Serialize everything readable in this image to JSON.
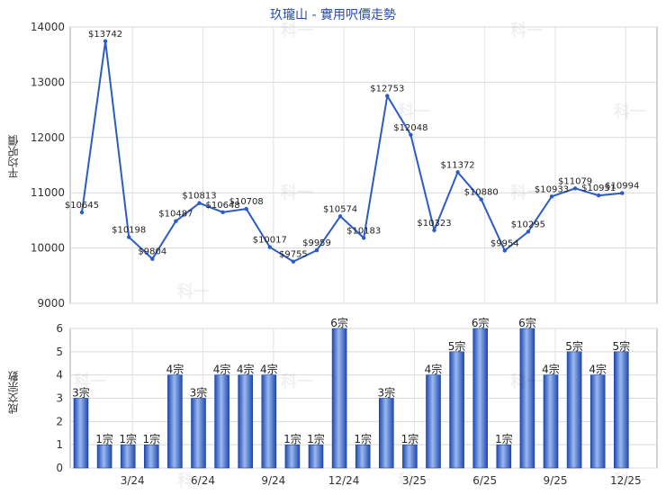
{
  "title": "玖瓏山 - 實用呎價走勢",
  "watermark": "科一",
  "chart_data": [
    {
      "type": "line",
      "ylabel": "平均呎價",
      "ylim": [
        9000,
        14000
      ],
      "yticks": [
        "9000",
        "10000",
        "11000",
        "12000",
        "13000",
        "14000"
      ],
      "series": [
        {
          "values": [
            10645,
            13742,
            10198,
            9804,
            10487,
            10813,
            10648,
            10708,
            10017,
            9755,
            9959,
            10574,
            10183,
            12753,
            12048,
            10323,
            11372,
            10880,
            9954,
            10295,
            10933,
            11079,
            10951,
            10994
          ],
          "labels": [
            "$10645",
            "$13742",
            "$10198",
            "$9804",
            "$10487",
            "$10813",
            "$10648",
            "$10708",
            "$10017",
            "$9755",
            "$9959",
            "$10574",
            "$10183",
            "$12753",
            "$12048",
            "$10323",
            "$11372",
            "$10880",
            "$9954",
            "$10295",
            "$10933",
            "$11079",
            "$10951",
            "$10994"
          ]
        }
      ],
      "color": "#2b5cc4",
      "grid": true
    },
    {
      "type": "bar",
      "ylabel": "成交宗數",
      "ylim": [
        0,
        6
      ],
      "yticks": [
        "0",
        "1",
        "2",
        "3",
        "4",
        "5",
        "6"
      ],
      "categories": [
        "",
        "",
        "3/24",
        "",
        "",
        "6/24",
        "",
        "",
        "9/24",
        "",
        "",
        "12/24",
        "",
        "",
        "3/25",
        "",
        "",
        "6/25",
        "",
        "",
        "9/25",
        "",
        "",
        "12/25"
      ],
      "values": [
        3,
        1,
        1,
        1,
        4,
        3,
        4,
        4,
        4,
        1,
        1,
        6,
        1,
        3,
        1,
        4,
        5,
        6,
        1,
        6,
        4,
        5,
        4,
        5
      ],
      "labels": [
        "3宗",
        "1宗",
        "1宗",
        "1宗",
        "4宗",
        "3宗",
        "4宗",
        "4宗",
        "4宗",
        "1宗",
        "1宗",
        "6宗",
        "1宗",
        "3宗",
        "1宗",
        "4宗",
        "5宗",
        "6宗",
        "1宗",
        "6宗",
        "4宗",
        "5宗",
        "4宗",
        "5宗"
      ],
      "color": "#2b5cc4",
      "grid": true
    }
  ]
}
